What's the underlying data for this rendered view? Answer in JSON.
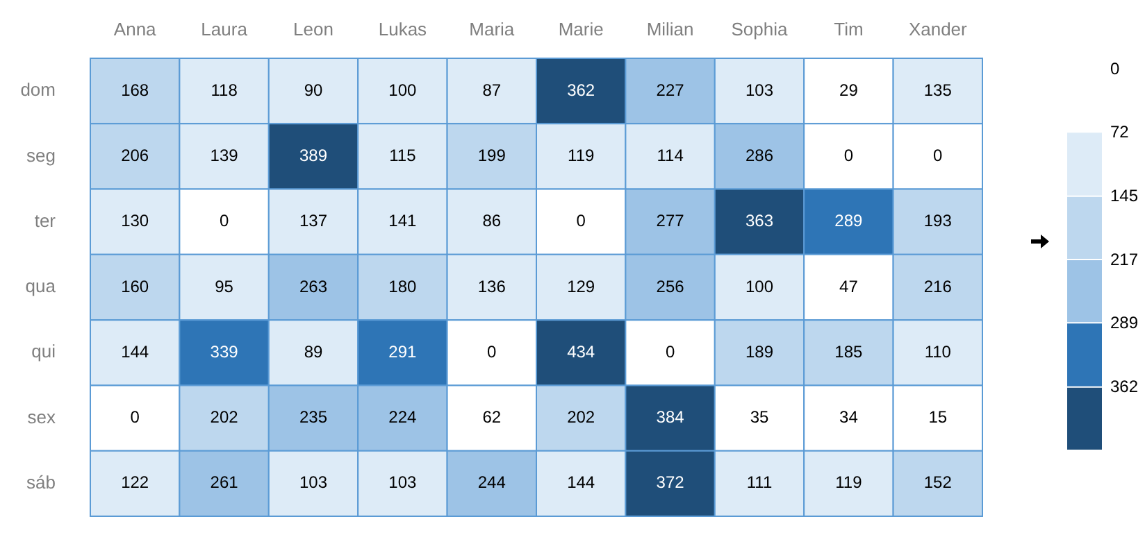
{
  "chart_data": {
    "type": "heatmap",
    "categories": [
      "Anna",
      "Laura",
      "Leon",
      "Lukas",
      "Maria",
      "Marie",
      "Milian",
      "Sophia",
      "Tim",
      "Xander"
    ],
    "y_categories": [
      "dom",
      "seg",
      "ter",
      "qua",
      "qui",
      "sex",
      "sáb"
    ],
    "cells": [
      [
        168,
        118,
        90,
        100,
        87,
        362,
        227,
        103,
        29,
        135
      ],
      [
        206,
        139,
        389,
        115,
        199,
        119,
        114,
        286,
        0,
        0
      ],
      [
        130,
        0,
        137,
        141,
        86,
        0,
        277,
        363,
        289,
        193
      ],
      [
        160,
        95,
        263,
        180,
        136,
        129,
        256,
        100,
        47,
        216
      ],
      [
        144,
        339,
        89,
        291,
        0,
        434,
        0,
        189,
        185,
        110
      ],
      [
        0,
        202,
        235,
        224,
        62,
        202,
        384,
        35,
        34,
        15
      ],
      [
        122,
        261,
        103,
        103,
        244,
        144,
        372,
        111,
        119,
        152
      ]
    ],
    "data_labels": true,
    "clim": [
      0,
      434
    ],
    "cticks": [
      0,
      72,
      145,
      217,
      289,
      362
    ],
    "colors": [
      "#ffffff",
      "#ddebf7",
      "#bdd7ee",
      "#9dc3e6",
      "#2e75b6",
      "#1f4e79"
    ]
  }
}
